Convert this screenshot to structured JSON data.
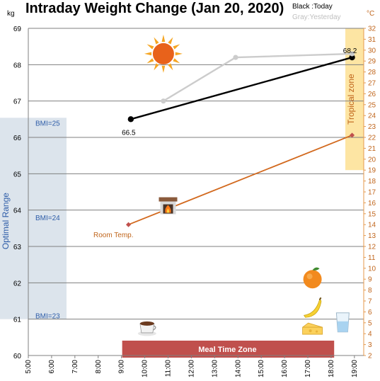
{
  "chart_data": {
    "type": "line",
    "title": "Intraday Weight Change (Jan 20, 2020)",
    "legend": {
      "today": "Black :Today",
      "yesterday": "Gray:Yesterday"
    },
    "y_left": {
      "unit": "kg",
      "min": 60,
      "max": 69,
      "ticks": [
        "60",
        "61",
        "62",
        "63",
        "64",
        "65",
        "66",
        "67",
        "68",
        "69"
      ]
    },
    "y_right": {
      "unit": "°C",
      "min": 2,
      "max": 32,
      "ticks": [
        "2",
        "3",
        "4",
        "5",
        "6",
        "7",
        "8",
        "9",
        "10",
        "11",
        "12",
        "13",
        "14",
        "15",
        "16",
        "17",
        "18",
        "19",
        "20",
        "21",
        "22",
        "23",
        "24",
        "25",
        "26",
        "27",
        "28",
        "29",
        "30",
        "31",
        "32"
      ]
    },
    "x": {
      "ticks": [
        "5:00",
        "6:00",
        "7:00",
        "8:00",
        "9:00",
        "10:00",
        "11:00",
        "12:00",
        "13:00",
        "14:00",
        "15:00",
        "16:00",
        "17:00",
        "18:00",
        "19:00"
      ],
      "min_hour": 5,
      "max_hour": 19.4
    },
    "series": [
      {
        "name": "Today",
        "color": "#000000",
        "points": [
          {
            "hour": 9.4,
            "kg": 66.5,
            "label": "66.5"
          },
          {
            "hour": 18.9,
            "kg": 68.2,
            "label": "68.2"
          }
        ]
      },
      {
        "name": "Yesterday",
        "color": "#cccccc",
        "points": [
          {
            "hour": 10.8,
            "kg": 67.0
          },
          {
            "hour": 13.9,
            "kg": 68.2
          },
          {
            "hour": 18.9,
            "kg": 68.3
          }
        ]
      },
      {
        "name": "Room Temp.",
        "color": "#d2691e",
        "axis": "right",
        "points": [
          {
            "hour": 9.3,
            "celsius": 14.0
          },
          {
            "hour": 18.9,
            "celsius": 22.2
          }
        ]
      }
    ],
    "annotations": {
      "optimal_range": {
        "label": "Optimal Range",
        "kg_from": 61,
        "kg_to": 66.5,
        "color": "#dce4ec",
        "text_color": "#2e5da8"
      },
      "bmi_labels": [
        {
          "text": "BMI=25",
          "kg": 66.4
        },
        {
          "text": "BMI=24",
          "kg": 63.8
        },
        {
          "text": "BMI=23",
          "kg": 61.1
        }
      ],
      "tropical_zone": {
        "label": "Tropical zone",
        "celsius_from": 19,
        "celsius_to": 32,
        "color": "#fde5a3",
        "text_color": "#c0651b"
      },
      "meal_zone": {
        "label": "Meal Time Zone",
        "hour_from": 9,
        "hour_to": 18.1,
        "color": "#c0504d"
      },
      "room_temp_label": "Room Temp."
    },
    "icons": [
      {
        "name": "sun-icon",
        "hour": 10.8,
        "kg": 68.3
      },
      {
        "name": "fireplace-icon",
        "hour": 11.0,
        "kg": 64.1
      },
      {
        "name": "coffee-icon",
        "hour": 10.1,
        "kg": 60.8
      },
      {
        "name": "orange-icon",
        "hour": 17.2,
        "kg": 62.1
      },
      {
        "name": "banana-icon",
        "hour": 17.2,
        "kg": 61.3
      },
      {
        "name": "cheese-icon",
        "hour": 17.2,
        "kg": 60.7
      },
      {
        "name": "water-glass-icon",
        "hour": 18.5,
        "kg": 60.9
      }
    ]
  }
}
